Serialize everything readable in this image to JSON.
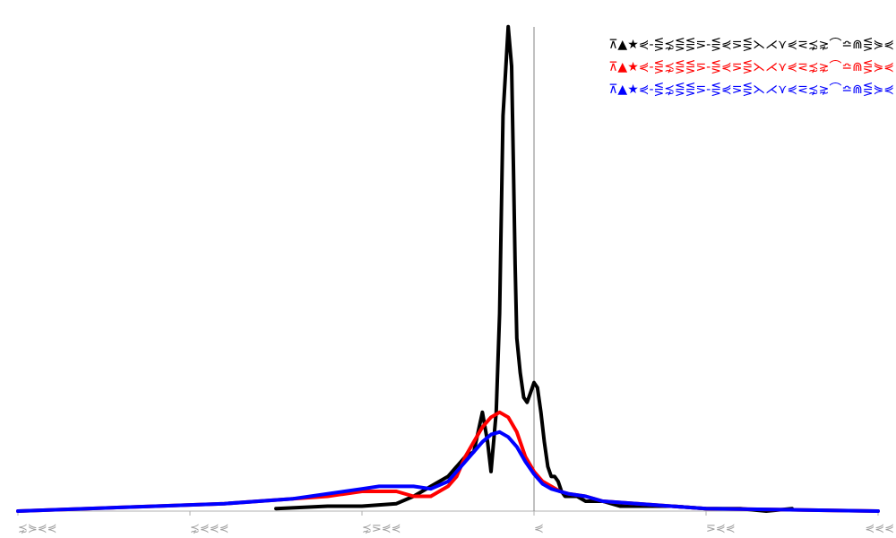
{
  "chart_data": {
    "type": "line",
    "title": "",
    "xlabel": "",
    "ylabel": "",
    "xlim": [
      -300,
      200
    ],
    "ylim": [
      0,
      1.0
    ],
    "grid": false,
    "legend_placement": "top-right",
    "x_ticks": [
      {
        "value": -300,
        "label": "⋨⋟⋞⋞"
      },
      {
        "value": -200,
        "label": "⋨⋞⋞⋞"
      },
      {
        "value": -100,
        "label": "⋨⋝⋞⋞"
      },
      {
        "value": 0,
        "label": "⋞"
      },
      {
        "value": 100,
        "label": "⋝⋞⋞"
      },
      {
        "value": 200,
        "label": "⋞⋞⋞"
      }
    ],
    "series": [
      {
        "name": "⊼▲★⋞-⋚⋨⋚⋚⋝-⋚⋞⋝⋚⋋⋌⋎⋞⋜⋨⋧⌒≏⋒⋚⋟⋞",
        "color": "#000000",
        "x": [
          -150,
          -120,
          -100,
          -80,
          -70,
          -60,
          -50,
          -40,
          -35,
          -30,
          -27,
          -25,
          -22,
          -20,
          -18,
          -15,
          -13,
          -12,
          -11,
          -10,
          -8,
          -6,
          -4,
          -2,
          0,
          2,
          4,
          6,
          8,
          10,
          12,
          14,
          16,
          18,
          20,
          25,
          30,
          40,
          50,
          60,
          80,
          100,
          120,
          135,
          150
        ],
        "y": [
          0.005,
          0.01,
          0.01,
          0.015,
          0.03,
          0.05,
          0.07,
          0.11,
          0.12,
          0.2,
          0.14,
          0.08,
          0.2,
          0.4,
          0.8,
          0.98,
          0.9,
          0.7,
          0.5,
          0.35,
          0.28,
          0.23,
          0.22,
          0.24,
          0.26,
          0.25,
          0.2,
          0.14,
          0.09,
          0.07,
          0.07,
          0.06,
          0.04,
          0.03,
          0.03,
          0.03,
          0.02,
          0.02,
          0.01,
          0.01,
          0.01,
          0.005,
          0.005,
          0.0,
          0.005
        ]
      },
      {
        "name": "⊼▲★⋞-⋚⋨⋚⋚⋝-⋚⋞⋝⋚⋋⋌⋎⋞⋜⋨⋧⌒≏⋒⋚⋟⋞",
        "color": "#ff0000",
        "x": [
          -300,
          -260,
          -220,
          -180,
          -140,
          -120,
          -100,
          -90,
          -80,
          -70,
          -60,
          -50,
          -45,
          -40,
          -35,
          -30,
          -25,
          -20,
          -15,
          -10,
          -5,
          0,
          5,
          10,
          15,
          20,
          30,
          40,
          60,
          80,
          100,
          140,
          200
        ],
        "y": [
          0.0,
          0.005,
          0.01,
          0.015,
          0.025,
          0.03,
          0.04,
          0.04,
          0.04,
          0.03,
          0.03,
          0.05,
          0.07,
          0.11,
          0.14,
          0.17,
          0.19,
          0.2,
          0.19,
          0.16,
          0.11,
          0.08,
          0.06,
          0.05,
          0.04,
          0.035,
          0.03,
          0.02,
          0.015,
          0.01,
          0.005,
          0.003,
          0.0
        ]
      },
      {
        "name": "⊼▲★⋞-⋚⋨⋚⋚⋝-⋚⋞⋝⋚⋋⋌⋎⋞⋜⋨⋧⌒≏⋒⋚⋟⋞",
        "color": "#0000ff",
        "x": [
          -300,
          -260,
          -220,
          -180,
          -140,
          -120,
          -100,
          -90,
          -80,
          -70,
          -60,
          -50,
          -45,
          -40,
          -35,
          -30,
          -25,
          -20,
          -15,
          -10,
          -5,
          0,
          5,
          10,
          15,
          20,
          30,
          40,
          60,
          80,
          100,
          140,
          200
        ],
        "y": [
          0.0,
          0.005,
          0.01,
          0.015,
          0.025,
          0.035,
          0.045,
          0.05,
          0.05,
          0.05,
          0.045,
          0.06,
          0.08,
          0.1,
          0.12,
          0.14,
          0.155,
          0.16,
          0.15,
          0.13,
          0.1,
          0.075,
          0.055,
          0.045,
          0.04,
          0.035,
          0.03,
          0.02,
          0.015,
          0.01,
          0.005,
          0.003,
          0.0
        ]
      }
    ]
  }
}
